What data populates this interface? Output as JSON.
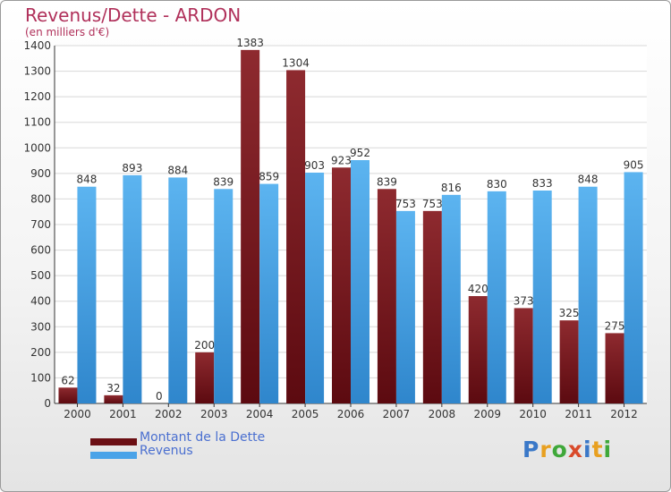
{
  "header": {
    "title": "Revenus/Dette - ARDON",
    "subtitle": "(en milliers d'€)"
  },
  "chart_data": {
    "type": "bar",
    "title": "Revenus/Dette - ARDON",
    "ylabel": "(en milliers d'€)",
    "xlabel": "",
    "categories": [
      "2000",
      "2001",
      "2002",
      "2003",
      "2004",
      "2005",
      "2006",
      "2007",
      "2008",
      "2009",
      "2010",
      "2011",
      "2012"
    ],
    "series": [
      {
        "name": "Montant de la Dette",
        "color": "#7a1a1f",
        "values": [
          62,
          32,
          0,
          200,
          1383,
          1304,
          923,
          839,
          753,
          420,
          373,
          325,
          275
        ]
      },
      {
        "name": "Revenus",
        "color": "#4aa3e8",
        "values": [
          848,
          893,
          884,
          839,
          859,
          903,
          952,
          753,
          816,
          830,
          833,
          848,
          905
        ]
      }
    ],
    "ylim": [
      0,
      1400
    ],
    "yticks": [
      0,
      100,
      200,
      300,
      400,
      500,
      600,
      700,
      800,
      900,
      1000,
      1100,
      1200,
      1300,
      1400
    ],
    "grid": true,
    "legend": "bottom-left"
  },
  "legend": {
    "items": [
      {
        "label": "Montant de la Dette",
        "color": "#6b0f14"
      },
      {
        "label": "Revenus",
        "color": "#4aa3e8"
      }
    ]
  },
  "logo": {
    "letters": [
      "P",
      "r",
      "o",
      "x",
      "i",
      "t",
      "i"
    ],
    "colors": [
      "#3a78c8",
      "#e8a020",
      "#3fa83a",
      "#d94a2a",
      "#3a78c8",
      "#e8a020",
      "#3fa83a"
    ]
  }
}
